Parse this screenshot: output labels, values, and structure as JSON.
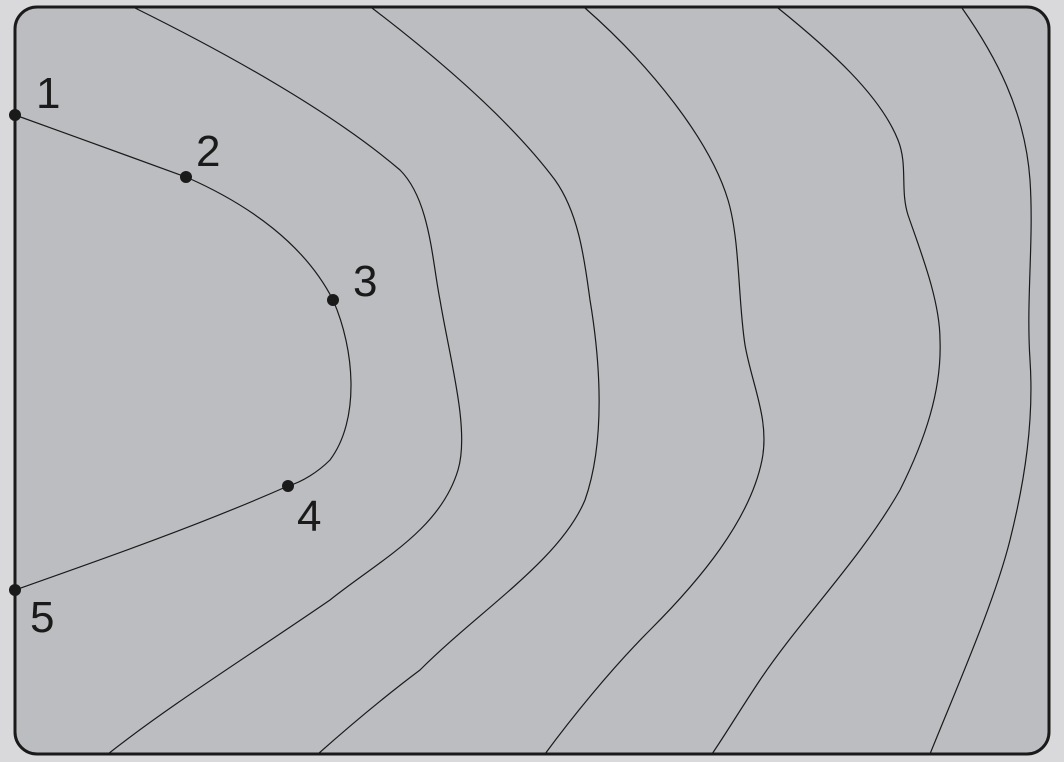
{
  "diagram": {
    "colors": {
      "page_background": "#d9d9db",
      "panel_fill": "#bcbdc0",
      "panel_border": "#1a1a1a",
      "curve_stroke": "#1a1a1a",
      "point_fill": "#1a1a1a"
    },
    "points": [
      {
        "id": "1",
        "label": "1"
      },
      {
        "id": "2",
        "label": "2"
      },
      {
        "id": "3",
        "label": "3"
      },
      {
        "id": "4",
        "label": "4"
      },
      {
        "id": "5",
        "label": "5"
      }
    ],
    "contour_lines_count": 6
  }
}
